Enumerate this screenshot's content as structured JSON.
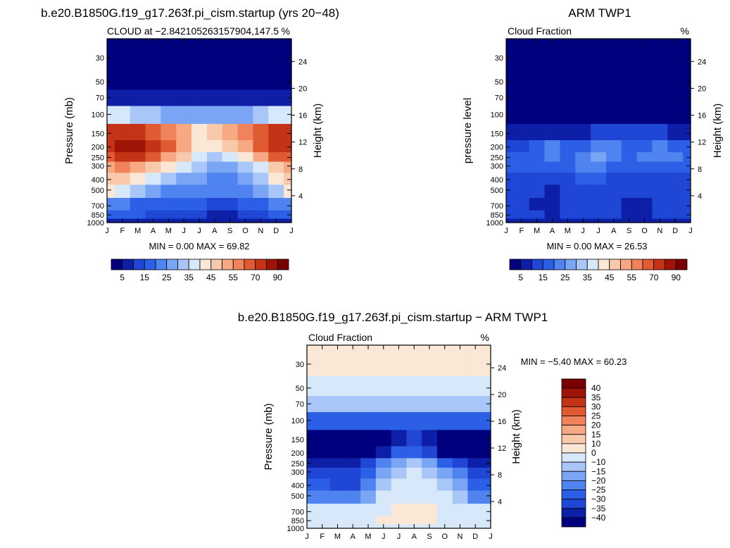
{
  "chart_data": [
    {
      "type": "heatmap",
      "title": "b.e20.B1850G.f19_g17.263f.pi_cism.startup (yrs 20−48)",
      "subtitle_left": "CLOUD at −2.842105263157904,147.5",
      "subtitle_right": "%",
      "ylabel": "Pressure (mb)",
      "y2label": "Height (km)",
      "x": [
        "J",
        "F",
        "M",
        "A",
        "M",
        "J",
        "J",
        "A",
        "S",
        "O",
        "N",
        "D",
        "J"
      ],
      "y_ticks": [
        30,
        50,
        70,
        100,
        150,
        200,
        250,
        300,
        400,
        500,
        700,
        850,
        1000
      ],
      "y_scale": "log",
      "ylim": [
        1000,
        20
      ],
      "height_ticks": [
        24,
        20,
        16,
        12,
        8,
        4
      ],
      "stats": "MIN =    0.00 MAX =   69.82",
      "colorbar_labels": [
        "5",
        "15",
        "25",
        "35",
        "45",
        "55",
        "70",
        "90"
      ],
      "colorbar_colors": [
        "#00007f",
        "#0d1fa6",
        "#1f46d4",
        "#2b60e6",
        "#4f83ef",
        "#7aa4f4",
        "#a8c6f8",
        "#d8e8fb",
        "#fbe7d6",
        "#f9c9ac",
        "#f7a983",
        "#f0835c",
        "#e05a32",
        "#c43315",
        "#a01408",
        "#7a0000"
      ],
      "grid": [
        [
          0,
          0,
          0,
          0,
          0,
          0,
          0,
          0,
          0,
          0,
          0,
          0,
          0
        ],
        [
          0,
          0,
          0,
          0,
          0,
          0,
          0,
          0,
          0,
          0,
          0,
          0,
          0
        ],
        [
          1,
          1,
          1,
          1,
          1,
          1,
          1,
          1,
          1,
          1,
          1,
          1,
          1
        ],
        [
          7,
          7,
          6,
          6,
          5,
          5,
          5,
          5,
          5,
          5,
          6,
          7,
          7
        ],
        [
          13,
          13,
          13,
          12,
          11,
          10,
          8,
          9,
          10,
          11,
          12,
          13,
          13
        ],
        [
          13,
          14,
          14,
          13,
          12,
          10,
          8,
          8,
          9,
          10,
          12,
          13,
          13
        ],
        [
          12,
          13,
          13,
          12,
          10,
          9,
          7,
          6,
          7,
          8,
          10,
          12,
          12
        ],
        [
          10,
          11,
          10,
          9,
          8,
          7,
          6,
          5,
          5,
          6,
          7,
          9,
          10
        ],
        [
          9,
          9,
          8,
          7,
          6,
          5,
          5,
          4,
          4,
          5,
          6,
          8,
          9
        ],
        [
          8,
          7,
          6,
          5,
          4,
          4,
          4,
          4,
          4,
          4,
          5,
          6,
          8
        ],
        [
          4,
          4,
          3,
          3,
          3,
          3,
          3,
          2,
          2,
          3,
          3,
          4,
          4
        ],
        [
          3,
          3,
          3,
          2,
          2,
          2,
          2,
          1,
          1,
          2,
          2,
          3,
          3
        ],
        [
          1,
          1,
          1,
          1,
          1,
          1,
          1,
          1,
          1,
          1,
          1,
          1,
          1
        ]
      ]
    },
    {
      "type": "heatmap",
      "title": "ARM TWP1",
      "subtitle_left": "Cloud Fraction",
      "subtitle_right": "%",
      "ylabel": "pressure level",
      "y2label": "Height (km)",
      "x": [
        "J",
        "F",
        "M",
        "A",
        "M",
        "J",
        "J",
        "A",
        "S",
        "O",
        "N",
        "D",
        "J"
      ],
      "y_ticks": [
        30,
        50,
        70,
        100,
        150,
        200,
        250,
        300,
        400,
        500,
        700,
        850,
        1000
      ],
      "y_scale": "log",
      "ylim": [
        1000,
        20
      ],
      "height_ticks": [
        24,
        20,
        16,
        12,
        8,
        4
      ],
      "stats": "MIN =    0.00 MAX =   26.53",
      "colorbar_labels": [
        "5",
        "15",
        "25",
        "35",
        "45",
        "55",
        "70",
        "90"
      ],
      "colorbar_colors": [
        "#00007f",
        "#0d1fa6",
        "#1f46d4",
        "#2b60e6",
        "#4f83ef",
        "#7aa4f4",
        "#a8c6f8",
        "#d8e8fb",
        "#fbe7d6",
        "#f9c9ac",
        "#f7a983",
        "#f0835c",
        "#e05a32",
        "#c43315",
        "#a01408",
        "#7a0000"
      ],
      "grid": [
        [
          0,
          0,
          0,
          0,
          0,
          0,
          0,
          0,
          0,
          0,
          0,
          0,
          0
        ],
        [
          0,
          0,
          0,
          0,
          0,
          0,
          0,
          0,
          0,
          0,
          0,
          0,
          0
        ],
        [
          0,
          0,
          0,
          0,
          0,
          0,
          0,
          0,
          0,
          0,
          0,
          0,
          0
        ],
        [
          0,
          0,
          0,
          0,
          0,
          0,
          0,
          0,
          0,
          0,
          0,
          0,
          0
        ],
        [
          1,
          1,
          1,
          1,
          1,
          1,
          2,
          2,
          2,
          2,
          2,
          1,
          1
        ],
        [
          2,
          2,
          3,
          4,
          3,
          3,
          4,
          4,
          3,
          3,
          4,
          3,
          3
        ],
        [
          3,
          3,
          3,
          4,
          3,
          4,
          5,
          4,
          3,
          4,
          4,
          4,
          3
        ],
        [
          3,
          3,
          3,
          3,
          3,
          4,
          4,
          3,
          3,
          3,
          3,
          3,
          3
        ],
        [
          2,
          2,
          2,
          2,
          2,
          3,
          3,
          2,
          2,
          2,
          2,
          2,
          2
        ],
        [
          2,
          2,
          2,
          1,
          2,
          2,
          2,
          2,
          2,
          2,
          2,
          2,
          2
        ],
        [
          2,
          2,
          1,
          1,
          2,
          2,
          2,
          2,
          1,
          1,
          2,
          2,
          2
        ],
        [
          2,
          2,
          2,
          1,
          2,
          2,
          2,
          2,
          1,
          1,
          2,
          2,
          2
        ],
        [
          1,
          1,
          1,
          1,
          1,
          1,
          1,
          1,
          1,
          1,
          1,
          1,
          1
        ]
      ]
    },
    {
      "type": "heatmap",
      "title": "b.e20.B1850G.f19_g17.263f.pi_cism.startup − ARM TWP1",
      "subtitle_left": "Cloud Fraction",
      "subtitle_right": "%",
      "ylabel": "Pressure (mb)",
      "y2label": "Height (km)",
      "x": [
        "J",
        "F",
        "M",
        "A",
        "M",
        "J",
        "J",
        "A",
        "S",
        "O",
        "N",
        "D",
        "J"
      ],
      "y_ticks": [
        30,
        50,
        70,
        100,
        150,
        200,
        250,
        300,
        400,
        500,
        700,
        850,
        1000
      ],
      "y_scale": "log",
      "ylim": [
        1000,
        20
      ],
      "height_ticks": [
        24,
        20,
        16,
        12,
        8,
        4
      ],
      "stats": "MIN =   −5.40 MAX =   60.23",
      "colorbar_labels": [
        "40",
        "35",
        "30",
        "25",
        "20",
        "15",
        "10",
        "0",
        "−10",
        "−15",
        "−20",
        "−25",
        "−30",
        "−35",
        "−40"
      ],
      "colorbar_colors": [
        "#7a0000",
        "#a01408",
        "#c43315",
        "#e05a32",
        "#f0835c",
        "#f7a983",
        "#f9c9ac",
        "#fbe7d6",
        "#d8e8fb",
        "#a8c6f8",
        "#7aa4f4",
        "#4f83ef",
        "#2b60e6",
        "#1f46d4",
        "#0d1fa6",
        "#00007f"
      ],
      "grid": [
        [
          7,
          7,
          7,
          7,
          7,
          7,
          7,
          7,
          7,
          7,
          7,
          7,
          7
        ],
        [
          8,
          8,
          8,
          8,
          8,
          8,
          8,
          8,
          8,
          8,
          8,
          8,
          8
        ],
        [
          9,
          9,
          9,
          9,
          9,
          9,
          9,
          9,
          9,
          9,
          9,
          9,
          9
        ],
        [
          12,
          12,
          12,
          12,
          12,
          12,
          12,
          12,
          12,
          12,
          12,
          12,
          12
        ],
        [
          15,
          15,
          15,
          15,
          15,
          15,
          14,
          13,
          14,
          15,
          15,
          15,
          15
        ],
        [
          15,
          15,
          15,
          15,
          15,
          14,
          12,
          12,
          13,
          15,
          15,
          15,
          15
        ],
        [
          14,
          14,
          14,
          14,
          13,
          11,
          10,
          9,
          10,
          12,
          13,
          14,
          14
        ],
        [
          13,
          13,
          13,
          13,
          12,
          10,
          9,
          8,
          9,
          10,
          11,
          13,
          13
        ],
        [
          12,
          12,
          13,
          13,
          11,
          9,
          8,
          8,
          8,
          9,
          10,
          12,
          12
        ],
        [
          11,
          11,
          11,
          11,
          10,
          8,
          8,
          8,
          8,
          8,
          9,
          11,
          11
        ],
        [
          8,
          8,
          8,
          8,
          8,
          8,
          7,
          7,
          7,
          8,
          8,
          8,
          8
        ],
        [
          8,
          8,
          8,
          8,
          8,
          7,
          7,
          7,
          7,
          8,
          8,
          8,
          8
        ],
        [
          8,
          8,
          8,
          8,
          8,
          8,
          8,
          8,
          8,
          8,
          8,
          8,
          8
        ]
      ]
    }
  ]
}
